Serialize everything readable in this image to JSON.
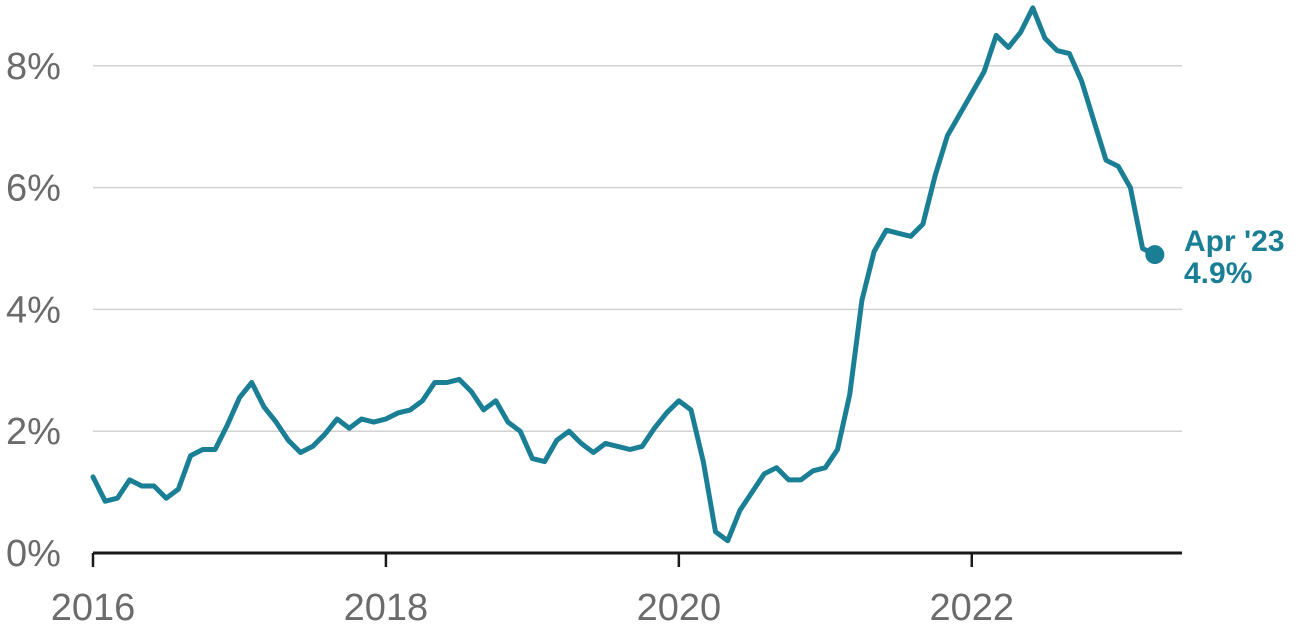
{
  "chart_data": {
    "type": "line",
    "title": "",
    "xlabel": "",
    "ylabel": "",
    "xlim": [
      2016.0,
      2023.333
    ],
    "ylim": [
      0,
      9.1
    ],
    "grid": true,
    "legend": "none",
    "colors": {
      "line": "#1a7f95",
      "grid": "#d2d2d2",
      "axis": "#1a1a1a",
      "tick_text": "#6b6b6b",
      "annotation": "#1a7f95"
    },
    "y_ticks": [
      {
        "value": 0,
        "label": "0%"
      },
      {
        "value": 2,
        "label": "2%"
      },
      {
        "value": 4,
        "label": "4%"
      },
      {
        "value": 6,
        "label": "6%"
      },
      {
        "value": 8,
        "label": "8%"
      }
    ],
    "x_ticks": [
      {
        "value": 2016,
        "label": "2016"
      },
      {
        "value": 2018,
        "label": "2018"
      },
      {
        "value": 2020,
        "label": "2020"
      },
      {
        "value": 2022,
        "label": "2022"
      }
    ],
    "series": [
      {
        "x": [
          "2016-01",
          "2016-02",
          "2016-03",
          "2016-04",
          "2016-05",
          "2016-06",
          "2016-07",
          "2016-08",
          "2016-09",
          "2016-10",
          "2016-11",
          "2016-12",
          "2017-01",
          "2017-02",
          "2017-03",
          "2017-04",
          "2017-05",
          "2017-06",
          "2017-07",
          "2017-08",
          "2017-09",
          "2017-10",
          "2017-11",
          "2017-12",
          "2018-01",
          "2018-02",
          "2018-03",
          "2018-04",
          "2018-05",
          "2018-06",
          "2018-07",
          "2018-08",
          "2018-09",
          "2018-10",
          "2018-11",
          "2018-12",
          "2019-01",
          "2019-02",
          "2019-03",
          "2019-04",
          "2019-05",
          "2019-06",
          "2019-07",
          "2019-08",
          "2019-09",
          "2019-10",
          "2019-11",
          "2019-12",
          "2020-01",
          "2020-02",
          "2020-03",
          "2020-04",
          "2020-05",
          "2020-06",
          "2020-07",
          "2020-08",
          "2020-09",
          "2020-10",
          "2020-11",
          "2020-12",
          "2021-01",
          "2021-02",
          "2021-03",
          "2021-04",
          "2021-05",
          "2021-06",
          "2021-07",
          "2021-08",
          "2021-09",
          "2021-10",
          "2021-11",
          "2021-12",
          "2022-01",
          "2022-02",
          "2022-03",
          "2022-04",
          "2022-05",
          "2022-06",
          "2022-07",
          "2022-08",
          "2022-09",
          "2022-10",
          "2022-11",
          "2022-12",
          "2023-01",
          "2023-02",
          "2023-03",
          "2023-04"
        ],
        "values": [
          1.25,
          0.85,
          0.9,
          1.2,
          1.1,
          1.1,
          0.9,
          1.05,
          1.6,
          1.7,
          1.7,
          2.1,
          2.55,
          2.8,
          2.4,
          2.15,
          1.85,
          1.65,
          1.75,
          1.95,
          2.2,
          2.05,
          2.2,
          2.15,
          2.2,
          2.3,
          2.35,
          2.5,
          2.8,
          2.8,
          2.85,
          2.65,
          2.35,
          2.5,
          2.15,
          2.0,
          1.55,
          1.5,
          1.85,
          2.0,
          1.8,
          1.65,
          1.8,
          1.75,
          1.7,
          1.75,
          2.05,
          2.3,
          2.5,
          2.35,
          1.5,
          0.35,
          0.2,
          0.7,
          1.0,
          1.3,
          1.4,
          1.2,
          1.2,
          1.35,
          1.4,
          1.7,
          2.6,
          4.15,
          4.95,
          5.3,
          5.25,
          5.2,
          5.4,
          6.2,
          6.85,
          7.2,
          7.55,
          7.9,
          8.5,
          8.3,
          8.55,
          8.95,
          8.45,
          8.25,
          8.2,
          7.75,
          7.1,
          6.45,
          6.35,
          6.0,
          5.0,
          4.9
        ]
      }
    ],
    "annotations": [
      {
        "date": "2023-04",
        "value": 4.9,
        "line1": "Apr '23",
        "line2": "4.9%"
      }
    ]
  }
}
